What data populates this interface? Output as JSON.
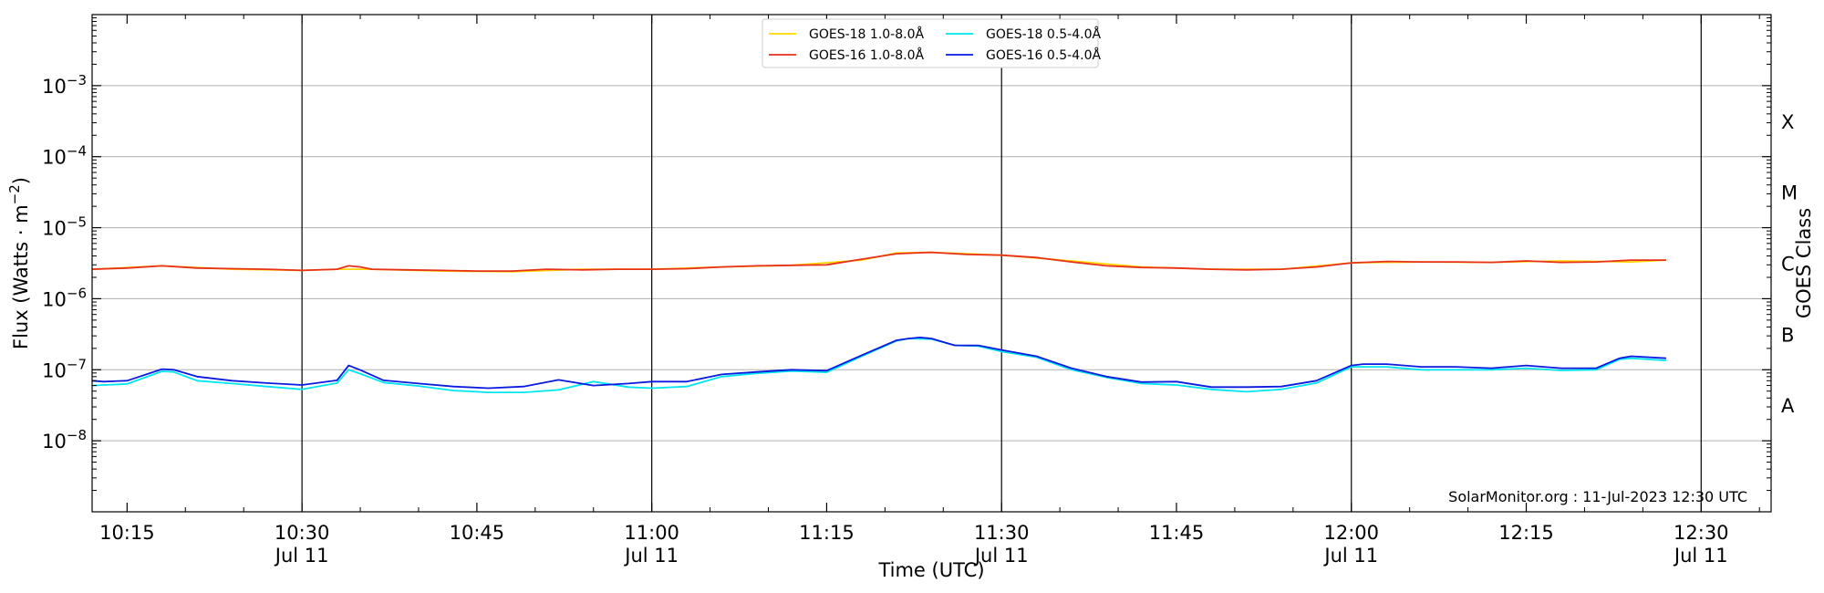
{
  "chart_data": {
    "type": "line",
    "title": "",
    "xlabel": "Time (UTC)",
    "ylabel": "Flux (Watts · m",
    "ylabel_sup": "−2",
    "ylabel_close": ")",
    "right_ylabel": "GOES Class",
    "credit": "SolarMonitor.org : 11-Jul-2023 12:30 UTC",
    "x_start": "10:12",
    "x_end": "12:36",
    "y_scale": "log",
    "ylim": [
      1e-09,
      0.01
    ],
    "grid": "horizontal",
    "legend_position": "top-center",
    "x_ticks": [
      {
        "t": "10:15",
        "label": "10:15",
        "date": ""
      },
      {
        "t": "10:30",
        "label": "10:30",
        "date": "Jul 11"
      },
      {
        "t": "10:45",
        "label": "10:45",
        "date": ""
      },
      {
        "t": "11:00",
        "label": "11:00",
        "date": "Jul 11"
      },
      {
        "t": "11:15",
        "label": "11:15",
        "date": ""
      },
      {
        "t": "11:30",
        "label": "11:30",
        "date": "Jul 11"
      },
      {
        "t": "11:45",
        "label": "11:45",
        "date": ""
      },
      {
        "t": "12:00",
        "label": "12:00",
        "date": "Jul 11"
      },
      {
        "t": "12:15",
        "label": "12:15",
        "date": ""
      },
      {
        "t": "12:30",
        "label": "12:30",
        "date": "Jul 11"
      }
    ],
    "y_ticks": [
      {
        "exp": -8,
        "label_base": "10",
        "label_exp": "−8"
      },
      {
        "exp": -7,
        "label_base": "10",
        "label_exp": "−7"
      },
      {
        "exp": -6,
        "label_base": "10",
        "label_exp": "−6"
      },
      {
        "exp": -5,
        "label_base": "10",
        "label_exp": "−5"
      },
      {
        "exp": -4,
        "label_base": "10",
        "label_exp": "−4"
      },
      {
        "exp": -3,
        "label_base": "10",
        "label_exp": "−3"
      }
    ],
    "goes_classes": [
      {
        "label": "A",
        "exp": -7.5
      },
      {
        "label": "B",
        "exp": -6.5
      },
      {
        "label": "C",
        "exp": -5.5
      },
      {
        "label": "M",
        "exp": -4.5
      },
      {
        "label": "X",
        "exp": -3.5
      }
    ],
    "vertical_lines": [
      "10:30",
      "11:00",
      "11:30",
      "12:00",
      "12:30"
    ],
    "series": [
      {
        "name": "GOES-18 1.0-8.0Å",
        "color": "#ffd700",
        "x": [
          "10:12",
          "10:18",
          "10:24",
          "10:30",
          "10:33",
          "10:36",
          "10:42",
          "10:48",
          "10:54",
          "11:00",
          "11:06",
          "11:12",
          "11:18",
          "11:21",
          "11:24",
          "11:30",
          "11:36",
          "11:42",
          "11:48",
          "11:54",
          "12:00",
          "12:06",
          "12:12",
          "12:18",
          "12:24",
          "12:27"
        ],
        "y": [
          2.6e-06,
          2.9e-06,
          2.6e-06,
          2.5e-06,
          2.6e-06,
          2.6e-06,
          2.45e-06,
          2.4e-06,
          2.6e-06,
          2.6e-06,
          2.8e-06,
          2.95e-06,
          3.5e-06,
          4.4e-06,
          4.5e-06,
          4.1e-06,
          3.4e-06,
          2.8e-06,
          2.6e-06,
          2.6e-06,
          3.2e-06,
          3.3e-06,
          3.25e-06,
          3.4e-06,
          3.3e-06,
          3.5e-06
        ]
      },
      {
        "name": "GOES-16 1.0-8.0Å",
        "color": "#e8311a",
        "x": [
          "10:12",
          "10:15",
          "10:18",
          "10:21",
          "10:24",
          "10:27",
          "10:30",
          "10:33",
          "10:34",
          "10:35",
          "10:36",
          "10:39",
          "10:42",
          "10:45",
          "10:48",
          "10:51",
          "10:54",
          "10:57",
          "11:00",
          "11:03",
          "11:06",
          "11:09",
          "11:12",
          "11:15",
          "11:18",
          "11:21",
          "11:24",
          "11:27",
          "11:30",
          "11:33",
          "11:36",
          "11:39",
          "11:42",
          "11:45",
          "11:48",
          "11:51",
          "11:54",
          "11:57",
          "12:00",
          "12:03",
          "12:06",
          "12:09",
          "12:12",
          "12:15",
          "12:18",
          "12:21",
          "12:24",
          "12:27"
        ],
        "y": [
          2.6e-06,
          2.7e-06,
          2.9e-06,
          2.7e-06,
          2.65e-06,
          2.6e-06,
          2.5e-06,
          2.6e-06,
          2.9e-06,
          2.8e-06,
          2.6e-06,
          2.55e-06,
          2.5e-06,
          2.45e-06,
          2.45e-06,
          2.6e-06,
          2.55e-06,
          2.6e-06,
          2.6e-06,
          2.65e-06,
          2.8e-06,
          2.9e-06,
          2.95e-06,
          3e-06,
          3.6e-06,
          4.3e-06,
          4.5e-06,
          4.2e-06,
          4.1e-06,
          3.8e-06,
          3.3e-06,
          2.9e-06,
          2.75e-06,
          2.7e-06,
          2.6e-06,
          2.55e-06,
          2.6e-06,
          2.8e-06,
          3.2e-06,
          3.35e-06,
          3.3e-06,
          3.3e-06,
          3.25e-06,
          3.4e-06,
          3.25e-06,
          3.3e-06,
          3.5e-06,
          3.5e-06
        ]
      },
      {
        "name": "GOES-18 0.5-4.0Å",
        "color": "#00e5ee",
        "x": [
          "10:12",
          "10:15",
          "10:18",
          "10:19",
          "10:21",
          "10:24",
          "10:27",
          "10:30",
          "10:33",
          "10:34",
          "10:35",
          "10:37",
          "10:40",
          "10:43",
          "10:46",
          "10:49",
          "10:52",
          "10:55",
          "10:58",
          "11:00",
          "11:03",
          "11:06",
          "11:09",
          "11:12",
          "11:15",
          "11:18",
          "11:21",
          "11:22",
          "11:24",
          "11:26",
          "11:28",
          "11:30",
          "11:33",
          "11:36",
          "11:39",
          "11:42",
          "11:45",
          "11:48",
          "11:51",
          "11:54",
          "11:57",
          "12:00",
          "12:03",
          "12:06",
          "12:09",
          "12:12",
          "12:15",
          "12:18",
          "12:21",
          "12:23",
          "12:24",
          "12:27"
        ],
        "y": [
          6e-08,
          6.3e-08,
          9.5e-08,
          9.3e-08,
          7e-08,
          6.4e-08,
          5.8e-08,
          5.3e-08,
          6.5e-08,
          1e-07,
          8.8e-08,
          6.6e-08,
          5.9e-08,
          5.1e-08,
          4.8e-08,
          4.8e-08,
          5.2e-08,
          6.8e-08,
          5.7e-08,
          5.5e-08,
          5.8e-08,
          8e-08,
          8.9e-08,
          9.6e-08,
          9.2e-08,
          1.55e-07,
          2.55e-07,
          2.75e-07,
          2.7e-07,
          2.2e-07,
          2.15e-07,
          1.8e-07,
          1.5e-07,
          1e-07,
          7.8e-08,
          6.4e-08,
          6.1e-08,
          5.3e-08,
          4.9e-08,
          5.3e-08,
          6.5e-08,
          1.1e-07,
          1.1e-07,
          1e-07,
          1e-07,
          1e-07,
          1.05e-07,
          9.8e-08,
          1e-07,
          1.4e-07,
          1.45e-07,
          1.35e-07
        ]
      },
      {
        "name": "GOES-16 0.5-4.0Å",
        "color": "#0a1be0",
        "x": [
          "10:12",
          "10:13",
          "10:15",
          "10:18",
          "10:19",
          "10:21",
          "10:24",
          "10:27",
          "10:30",
          "10:33",
          "10:34",
          "10:35",
          "10:37",
          "10:40",
          "10:43",
          "10:46",
          "10:49",
          "10:52",
          "10:55",
          "10:58",
          "11:00",
          "11:03",
          "11:06",
          "11:09",
          "11:12",
          "11:15",
          "11:18",
          "11:21",
          "11:22",
          "11:23",
          "11:24",
          "11:26",
          "11:28",
          "11:30",
          "11:33",
          "11:36",
          "11:39",
          "11:42",
          "11:45",
          "11:48",
          "11:51",
          "11:54",
          "11:57",
          "12:00",
          "12:01",
          "12:03",
          "12:06",
          "12:09",
          "12:12",
          "12:15",
          "12:18",
          "12:21",
          "12:23",
          "12:24",
          "12:27"
        ],
        "y": [
          7e-08,
          6.8e-08,
          7e-08,
          1.02e-07,
          1e-07,
          8e-08,
          7e-08,
          6.5e-08,
          6.1e-08,
          7.1e-08,
          1.15e-07,
          9.9e-08,
          7.1e-08,
          6.4e-08,
          5.8e-08,
          5.5e-08,
          5.8e-08,
          7.2e-08,
          6e-08,
          6.4e-08,
          6.8e-08,
          6.8e-08,
          8.6e-08,
          9.3e-08,
          1e-07,
          9.7e-08,
          1.6e-07,
          2.6e-07,
          2.75e-07,
          2.85e-07,
          2.75e-07,
          2.2e-07,
          2.2e-07,
          1.9e-07,
          1.55e-07,
          1.05e-07,
          8e-08,
          6.7e-08,
          6.8e-08,
          5.7e-08,
          5.7e-08,
          5.8e-08,
          7e-08,
          1.15e-07,
          1.2e-07,
          1.2e-07,
          1.1e-07,
          1.1e-07,
          1.05e-07,
          1.15e-07,
          1.05e-07,
          1.05e-07,
          1.45e-07,
          1.55e-07,
          1.45e-07
        ]
      }
    ]
  }
}
